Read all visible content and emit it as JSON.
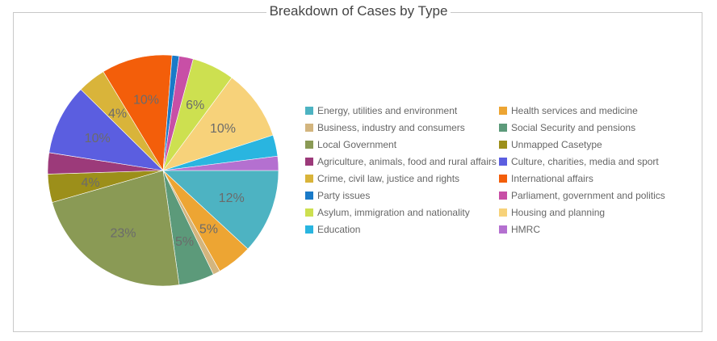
{
  "title": "Breakdown of Cases by Type",
  "chart_data": {
    "type": "pie",
    "title": "Breakdown of Cases by Type",
    "legend_position": "right",
    "start_angle_deg": 90,
    "direction": "clockwise",
    "slices": [
      {
        "label": "Energy, utilities and environment",
        "value": 12,
        "color": "#4db3c2",
        "pct_label": "12%"
      },
      {
        "label": "Health services and medicine",
        "value": 5,
        "color": "#eda533",
        "pct_label": "5%"
      },
      {
        "label": "Business, industry and consumers",
        "value": 1,
        "color": "#d3b57e",
        "pct_label": ""
      },
      {
        "label": "Social Security and pensions",
        "value": 5,
        "color": "#5c9a7a",
        "pct_label": "5%"
      },
      {
        "label": "Local Government",
        "value": 23,
        "color": "#8a9a55",
        "pct_label": "23%"
      },
      {
        "label": "Unmapped Casetype",
        "value": 4,
        "color": "#9c8f1a",
        "pct_label": "4%"
      },
      {
        "label": "Agriculture, animals, food and rural affairs",
        "value": 3,
        "color": "#9c3a7a",
        "pct_label": ""
      },
      {
        "label": "Culture, charities, media and sport",
        "value": 10,
        "color": "#5b5ee0",
        "pct_label": "10%"
      },
      {
        "label": "Crime, civil law, justice and rights",
        "value": 4,
        "color": "#d9b43a",
        "pct_label": "4%"
      },
      {
        "label": "International affairs",
        "value": 10,
        "color": "#f35e0a",
        "pct_label": "10%"
      },
      {
        "label": "Party issues",
        "value": 1,
        "color": "#1a7ac8",
        "pct_label": ""
      },
      {
        "label": "Parliament, government and politics",
        "value": 2,
        "color": "#c84fa6",
        "pct_label": ""
      },
      {
        "label": "Asylum, immigration and nationality",
        "value": 6,
        "color": "#cde050",
        "pct_label": "6%"
      },
      {
        "label": "Housing and planning",
        "value": 10,
        "color": "#f7d27a",
        "pct_label": "10%"
      },
      {
        "label": "Education",
        "value": 3,
        "color": "#29b5e0",
        "pct_label": ""
      },
      {
        "label": "HMRC",
        "value": 2,
        "color": "#b470d0",
        "pct_label": ""
      }
    ]
  }
}
